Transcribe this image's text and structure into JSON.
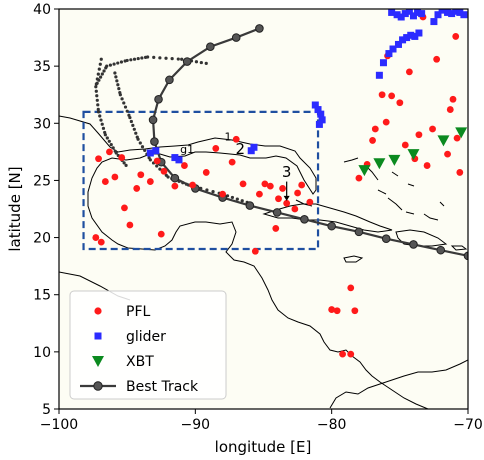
{
  "chart_data": {
    "type": "scatter",
    "xlabel": "longitude [E]",
    "ylabel": "latitude [N]",
    "xlim": [
      -100,
      -70
    ],
    "ylim": [
      5,
      40
    ],
    "xticks": [
      -100,
      -90,
      -80,
      -70
    ],
    "yticks": [
      5,
      10,
      15,
      20,
      25,
      30,
      35,
      40
    ],
    "xtick_labels": [
      "−100",
      "−90",
      "−80",
      "−70"
    ],
    "ytick_labels": [
      "5",
      "10",
      "15",
      "20",
      "25",
      "30",
      "35",
      "40"
    ],
    "background_sea": "#fdfdf4",
    "legend_position": "lower-left",
    "legend": [
      {
        "label": "PFL",
        "color": "#ff1a1a",
        "marker": "circle"
      },
      {
        "label": "glider",
        "color": "#2b2bff",
        "marker": "square"
      },
      {
        "label": "XBT",
        "color": "#0b8a1f",
        "marker": "triangle-down"
      },
      {
        "label": "Best Track",
        "color": "#3a3a3a",
        "marker": "circle-line"
      }
    ],
    "annotations": [
      {
        "text": "1",
        "x": -87.6,
        "y": 28.5
      },
      {
        "text": "2",
        "x": -86.7,
        "y": 27.3
      },
      {
        "text": "3",
        "x": -83.3,
        "y": 25.3
      },
      {
        "text": "g1",
        "x": -90.6,
        "y": 27.4
      }
    ],
    "box": {
      "x": [
        -98.2,
        -81.0
      ],
      "y": [
        19.0,
        31.0
      ],
      "color": "#1f4fa0"
    },
    "series": [
      {
        "name": "PFL",
        "color": "#ff1a1a",
        "points": [
          [
            -97.3,
            20.0
          ],
          [
            -96.9,
            19.6
          ],
          [
            -97.1,
            26.9
          ],
          [
            -96.6,
            24.9
          ],
          [
            -96.3,
            27.5
          ],
          [
            -95.9,
            25.3
          ],
          [
            -95.4,
            27.0
          ],
          [
            -95.2,
            22.6
          ],
          [
            -94.8,
            21.1
          ],
          [
            -94.3,
            24.3
          ],
          [
            -94.0,
            25.5
          ],
          [
            -93.3,
            24.9
          ],
          [
            -92.8,
            26.7
          ],
          [
            -92.5,
            20.3
          ],
          [
            -92.3,
            25.8
          ],
          [
            -91.5,
            24.5
          ],
          [
            -90.8,
            26.3
          ],
          [
            -90.2,
            24.6
          ],
          [
            -89.2,
            25.7
          ],
          [
            -88.5,
            27.8
          ],
          [
            -88.0,
            23.8
          ],
          [
            -87.3,
            26.6
          ],
          [
            -87.0,
            28.6
          ],
          [
            -86.5,
            24.7
          ],
          [
            -85.6,
            18.8
          ],
          [
            -85.3,
            23.8
          ],
          [
            -84.9,
            24.7
          ],
          [
            -84.5,
            24.5
          ],
          [
            -84.1,
            20.8
          ],
          [
            -83.9,
            23.4
          ],
          [
            -83.6,
            24.3
          ],
          [
            -83.3,
            23.0
          ],
          [
            -82.7,
            22.5
          ],
          [
            -82.5,
            23.9
          ],
          [
            -82.2,
            24.6
          ],
          [
            -81.6,
            23.1
          ],
          [
            -80.0,
            13.7
          ],
          [
            -79.6,
            13.6
          ],
          [
            -78.6,
            15.6
          ],
          [
            -78.3,
            13.6
          ],
          [
            -79.2,
            9.8
          ],
          [
            -78.6,
            9.8
          ],
          [
            -78.0,
            25.2
          ],
          [
            -77.4,
            26.4
          ],
          [
            -77.0,
            28.5
          ],
          [
            -76.8,
            29.5
          ],
          [
            -76.0,
            30.1
          ],
          [
            -75.6,
            32.4
          ],
          [
            -75.0,
            31.8
          ],
          [
            -74.6,
            28.1
          ],
          [
            -74.3,
            34.5
          ],
          [
            -73.9,
            26.9
          ],
          [
            -73.6,
            29.0
          ],
          [
            -73.0,
            26.3
          ],
          [
            -72.6,
            29.5
          ],
          [
            -71.5,
            27.3
          ],
          [
            -71.3,
            31.2
          ],
          [
            -70.8,
            28.7
          ],
          [
            -70.6,
            25.7
          ],
          [
            -71.1,
            32.1
          ],
          [
            -72.3,
            35.6
          ],
          [
            -70.9,
            37.6
          ],
          [
            -73.3,
            39.3
          ],
          [
            -75.9,
            35.9
          ],
          [
            -76.3,
            32.5
          ]
        ]
      },
      {
        "name": "glider",
        "color": "#2b2bff",
        "points": [
          [
            -93.3,
            27.4
          ],
          [
            -92.9,
            27.6
          ],
          [
            -91.5,
            27.0
          ],
          [
            -91.2,
            26.8
          ],
          [
            -85.9,
            27.6
          ],
          [
            -85.7,
            27.9
          ],
          [
            -81.2,
            31.6
          ],
          [
            -81.0,
            31.2
          ],
          [
            -80.8,
            30.8
          ],
          [
            -80.7,
            30.3
          ],
          [
            -80.9,
            29.9
          ],
          [
            -76.5,
            34.2
          ],
          [
            -76.2,
            35.3
          ],
          [
            -75.8,
            36.1
          ],
          [
            -75.5,
            36.5
          ],
          [
            -75.1,
            36.9
          ],
          [
            -74.8,
            37.3
          ],
          [
            -74.5,
            37.5
          ],
          [
            -74.2,
            37.7
          ],
          [
            -73.9,
            37.6
          ],
          [
            -73.6,
            37.9
          ],
          [
            -75.6,
            39.7
          ],
          [
            -75.2,
            39.5
          ],
          [
            -74.9,
            39.3
          ],
          [
            -74.6,
            39.6
          ],
          [
            -74.3,
            39.8
          ],
          [
            -74.0,
            39.4
          ],
          [
            -73.7,
            39.7
          ],
          [
            -73.4,
            39.6
          ],
          [
            -72.2,
            39.5
          ],
          [
            -71.9,
            39.9
          ],
          [
            -71.5,
            39.7
          ],
          [
            -71.2,
            39.6
          ],
          [
            -70.9,
            39.8
          ],
          [
            -70.6,
            39.7
          ],
          [
            -70.3,
            39.5
          ],
          [
            -72.5,
            38.9
          ]
        ]
      },
      {
        "name": "XBT",
        "color": "#0b8a1f",
        "points": [
          [
            -77.6,
            25.9
          ],
          [
            -76.5,
            26.5
          ],
          [
            -75.4,
            26.8
          ],
          [
            -74.0,
            27.3
          ],
          [
            -71.8,
            28.5
          ],
          [
            -70.5,
            29.2
          ]
        ]
      },
      {
        "name": "Best Track",
        "color": "#3a3a3a",
        "points": [
          [
            -70.0,
            18.4
          ],
          [
            -72.0,
            18.9
          ],
          [
            -74.0,
            19.4
          ],
          [
            -76.0,
            19.9
          ],
          [
            -78.0,
            20.5
          ],
          [
            -80.0,
            21.0
          ],
          [
            -82.0,
            21.6
          ],
          [
            -84.0,
            22.2
          ],
          [
            -86.0,
            22.8
          ],
          [
            -88.0,
            23.5
          ],
          [
            -90.0,
            24.3
          ],
          [
            -91.5,
            25.2
          ],
          [
            -92.5,
            26.6
          ],
          [
            -93.0,
            28.4
          ],
          [
            -93.1,
            30.3
          ],
          [
            -92.7,
            32.1
          ],
          [
            -91.9,
            33.8
          ],
          [
            -90.6,
            35.4
          ],
          [
            -88.9,
            36.7
          ],
          [
            -87.0,
            37.5
          ],
          [
            -85.3,
            38.3
          ]
        ]
      }
    ]
  }
}
